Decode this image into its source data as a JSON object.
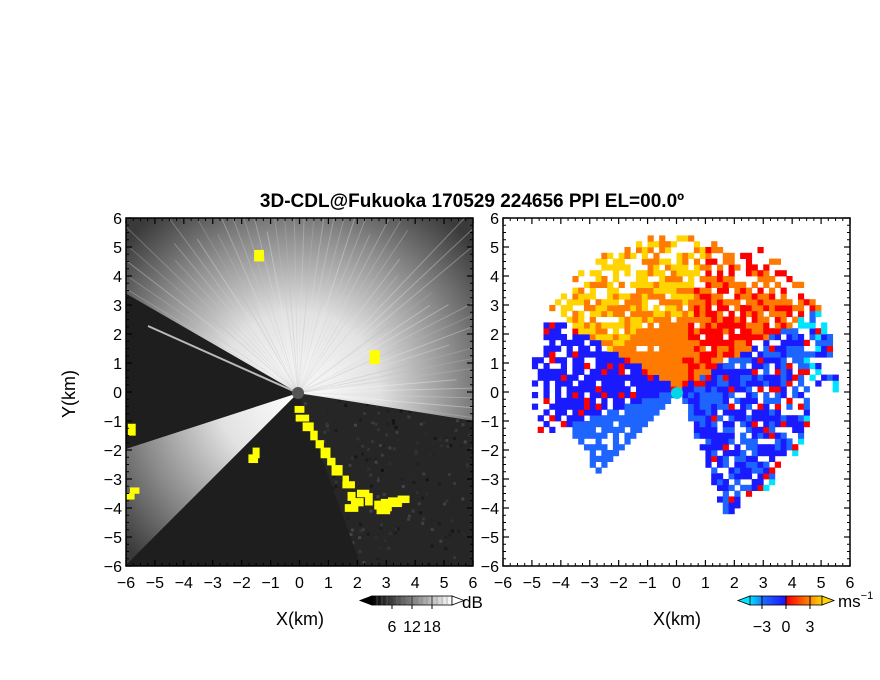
{
  "figure": {
    "title": "3D-CDL@Fukuoka 170529 224656 PPI EL=00.0º"
  },
  "chart_data": [
    {
      "type": "heatmap",
      "quantity": "",
      "xlabel": "X(km)",
      "ylabel": "Y(km)",
      "xlim": [
        -6,
        6
      ],
      "ylim": [
        -6,
        6
      ],
      "xticks": [
        "−6",
        "−5",
        "−4",
        "−3",
        "−2",
        "−1",
        "0",
        "1",
        "2",
        "3",
        "4",
        "5",
        "6"
      ],
      "yticks": [
        "6",
        "5",
        "4",
        "3",
        "2",
        "1",
        "0",
        "−1",
        "−2",
        "−3",
        "−4",
        "−5",
        "−6"
      ],
      "colorbar": {
        "unit": "dB",
        "tick_labels": [
          "6",
          "12",
          "18"
        ],
        "tick_values": [
          6,
          12,
          18
        ],
        "range": [
          0,
          24
        ],
        "colors": [
          "#000000",
          "#ffffff"
        ]
      },
      "highlight_color": "#ffff00",
      "sectors_deg": {
        "bright": [
          [
            -9,
            150
          ],
          [
            198,
            225
          ]
        ],
        "dark": [
          [
            150,
            198
          ],
          [
            225,
            290
          ]
        ]
      }
    },
    {
      "type": "heatmap",
      "quantity": "",
      "xlabel": "X(km)",
      "ylabel": "",
      "xlim": [
        -6,
        6
      ],
      "ylim": [
        -6,
        6
      ],
      "xticks": [
        "−6",
        "−5",
        "−4",
        "−3",
        "−2",
        "−1",
        "0",
        "1",
        "2",
        "3",
        "4",
        "5",
        "6"
      ],
      "yticks": [
        "6",
        "5",
        "4",
        "3",
        "2",
        "1",
        "0",
        "−1",
        "−2",
        "−3",
        "−4",
        "−5",
        "−6"
      ],
      "colorbar": {
        "unit": "ms",
        "unit_exponent": "−1",
        "tick_labels": [
          "−3",
          "0",
          "3"
        ],
        "tick_values": [
          -3,
          0,
          3
        ],
        "range": [
          -4.5,
          4.5
        ],
        "colors": [
          "#00e5ff",
          "#1e64ff",
          "#1a1aff",
          "#ff0000",
          "#ff7a00",
          "#ffd400"
        ]
      }
    }
  ]
}
